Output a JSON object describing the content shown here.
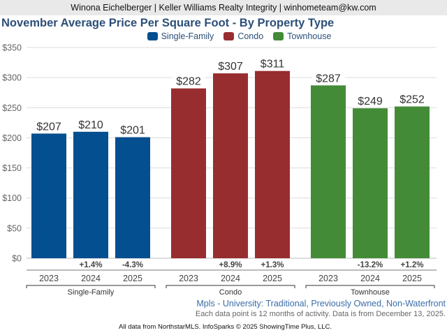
{
  "header": {
    "agent_line": "Winona Eichelberger | Keller Williams Realty Integrity | winhometeam@kw.com"
  },
  "chart_data": {
    "type": "bar",
    "title": "November Average Price Per Square Foot - By Property Type",
    "xlabel": "",
    "ylabel": "",
    "ylim": [
      0,
      350
    ],
    "yticks": [
      0,
      50,
      100,
      150,
      200,
      250,
      300,
      350
    ],
    "ytick_labels": [
      "$0",
      "$50",
      "$100",
      "$150",
      "$200",
      "$250",
      "$300",
      "$350"
    ],
    "grid": true,
    "legend_position": "top-center",
    "groups": [
      {
        "name": "Single-Family",
        "color": "#034f8f",
        "years": [
          "2023",
          "2024",
          "2025"
        ],
        "values": [
          207,
          210,
          201
        ],
        "value_labels": [
          "$207",
          "$210",
          "$201"
        ],
        "changes": [
          "",
          "+1.4%",
          "-4.3%"
        ]
      },
      {
        "name": "Condo",
        "color": "#982d2f",
        "years": [
          "2023",
          "2024",
          "2025"
        ],
        "values": [
          282,
          307,
          311
        ],
        "value_labels": [
          "$282",
          "$307",
          "$311"
        ],
        "changes": [
          "",
          "+8.9%",
          "+1.3%"
        ]
      },
      {
        "name": "Townhouse",
        "color": "#438b37",
        "years": [
          "2023",
          "2024",
          "2025"
        ],
        "values": [
          287,
          249,
          252
        ],
        "value_labels": [
          "$287",
          "$249",
          "$252"
        ],
        "changes": [
          "",
          "-13.2%",
          "+1.2%"
        ]
      }
    ],
    "legend": [
      "Single-Family",
      "Condo",
      "Townhouse"
    ]
  },
  "subtitle": "Mpls - University: Traditional, Previously Owned, Non-Waterfront",
  "note": "Each data point is 12 months of activity. Data is from December 13, 2025.",
  "footer": "All data from NorthstarMLS. InfoSparks © 2025 ShowingTime Plus, LLC."
}
